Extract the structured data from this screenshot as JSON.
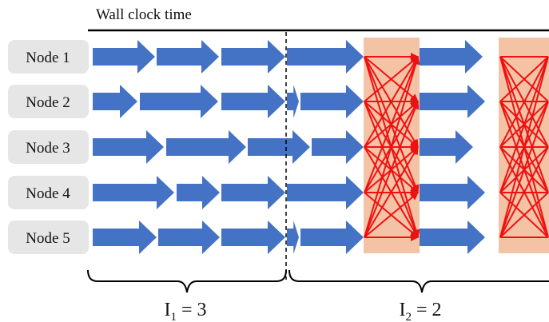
{
  "title": "Wall clock time",
  "nodes": [
    "Node 1",
    "Node 2",
    "Node 3",
    "Node 4",
    "Node 5"
  ],
  "intervals": [
    {
      "base": "I",
      "sub": "1",
      "rest": " = 3"
    },
    {
      "base": "I",
      "sub": "2",
      "rest": " = 2"
    }
  ],
  "colors": {
    "arrow": "#4472c4",
    "comm": "#f4c3a6",
    "mesh": "#ee1111",
    "node_box": "#e6e6e6"
  }
}
